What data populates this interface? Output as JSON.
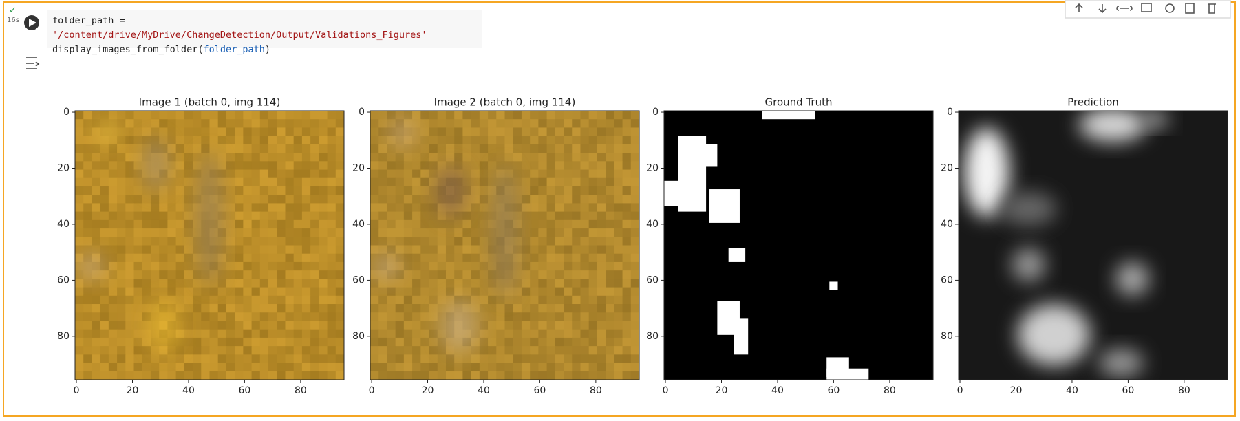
{
  "cell": {
    "exec_time": "16s",
    "code_line_1": {
      "name": "folder_path = ",
      "string": "'/content/drive/MyDrive/ChangeDetection/Output/Validations_Figures'"
    },
    "code_line_2": {
      "func": "display_images_from_folder(",
      "arg": "folder_path",
      "close": ")"
    }
  },
  "plots": [
    {
      "title": "Image 1 (batch 0, img 114)",
      "xlim": [
        -0.5,
        95.5
      ],
      "ylim": [
        95.5,
        -0.5
      ],
      "xticks": [
        0,
        20,
        40,
        60,
        80
      ],
      "yticks": [
        0,
        20,
        40,
        60,
        80
      ]
    },
    {
      "title": "Image 2 (batch 0, img 114)",
      "xlim": [
        -0.5,
        95.5
      ],
      "ylim": [
        95.5,
        -0.5
      ],
      "xticks": [
        0,
        20,
        40,
        60,
        80
      ],
      "yticks": [
        0,
        20,
        40,
        60,
        80
      ]
    },
    {
      "title": "Ground Truth",
      "xlim": [
        -0.5,
        95.5
      ],
      "ylim": [
        95.5,
        -0.5
      ],
      "xticks": [
        0,
        20,
        40,
        60,
        80
      ],
      "yticks": [
        0,
        20,
        40,
        60,
        80
      ]
    },
    {
      "title": "Prediction",
      "xlim": [
        -0.5,
        95.5
      ],
      "ylim": [
        95.5,
        -0.5
      ],
      "xticks": [
        0,
        20,
        40,
        60,
        80
      ],
      "yticks": [
        0,
        20,
        40,
        60,
        80
      ]
    }
  ]
}
